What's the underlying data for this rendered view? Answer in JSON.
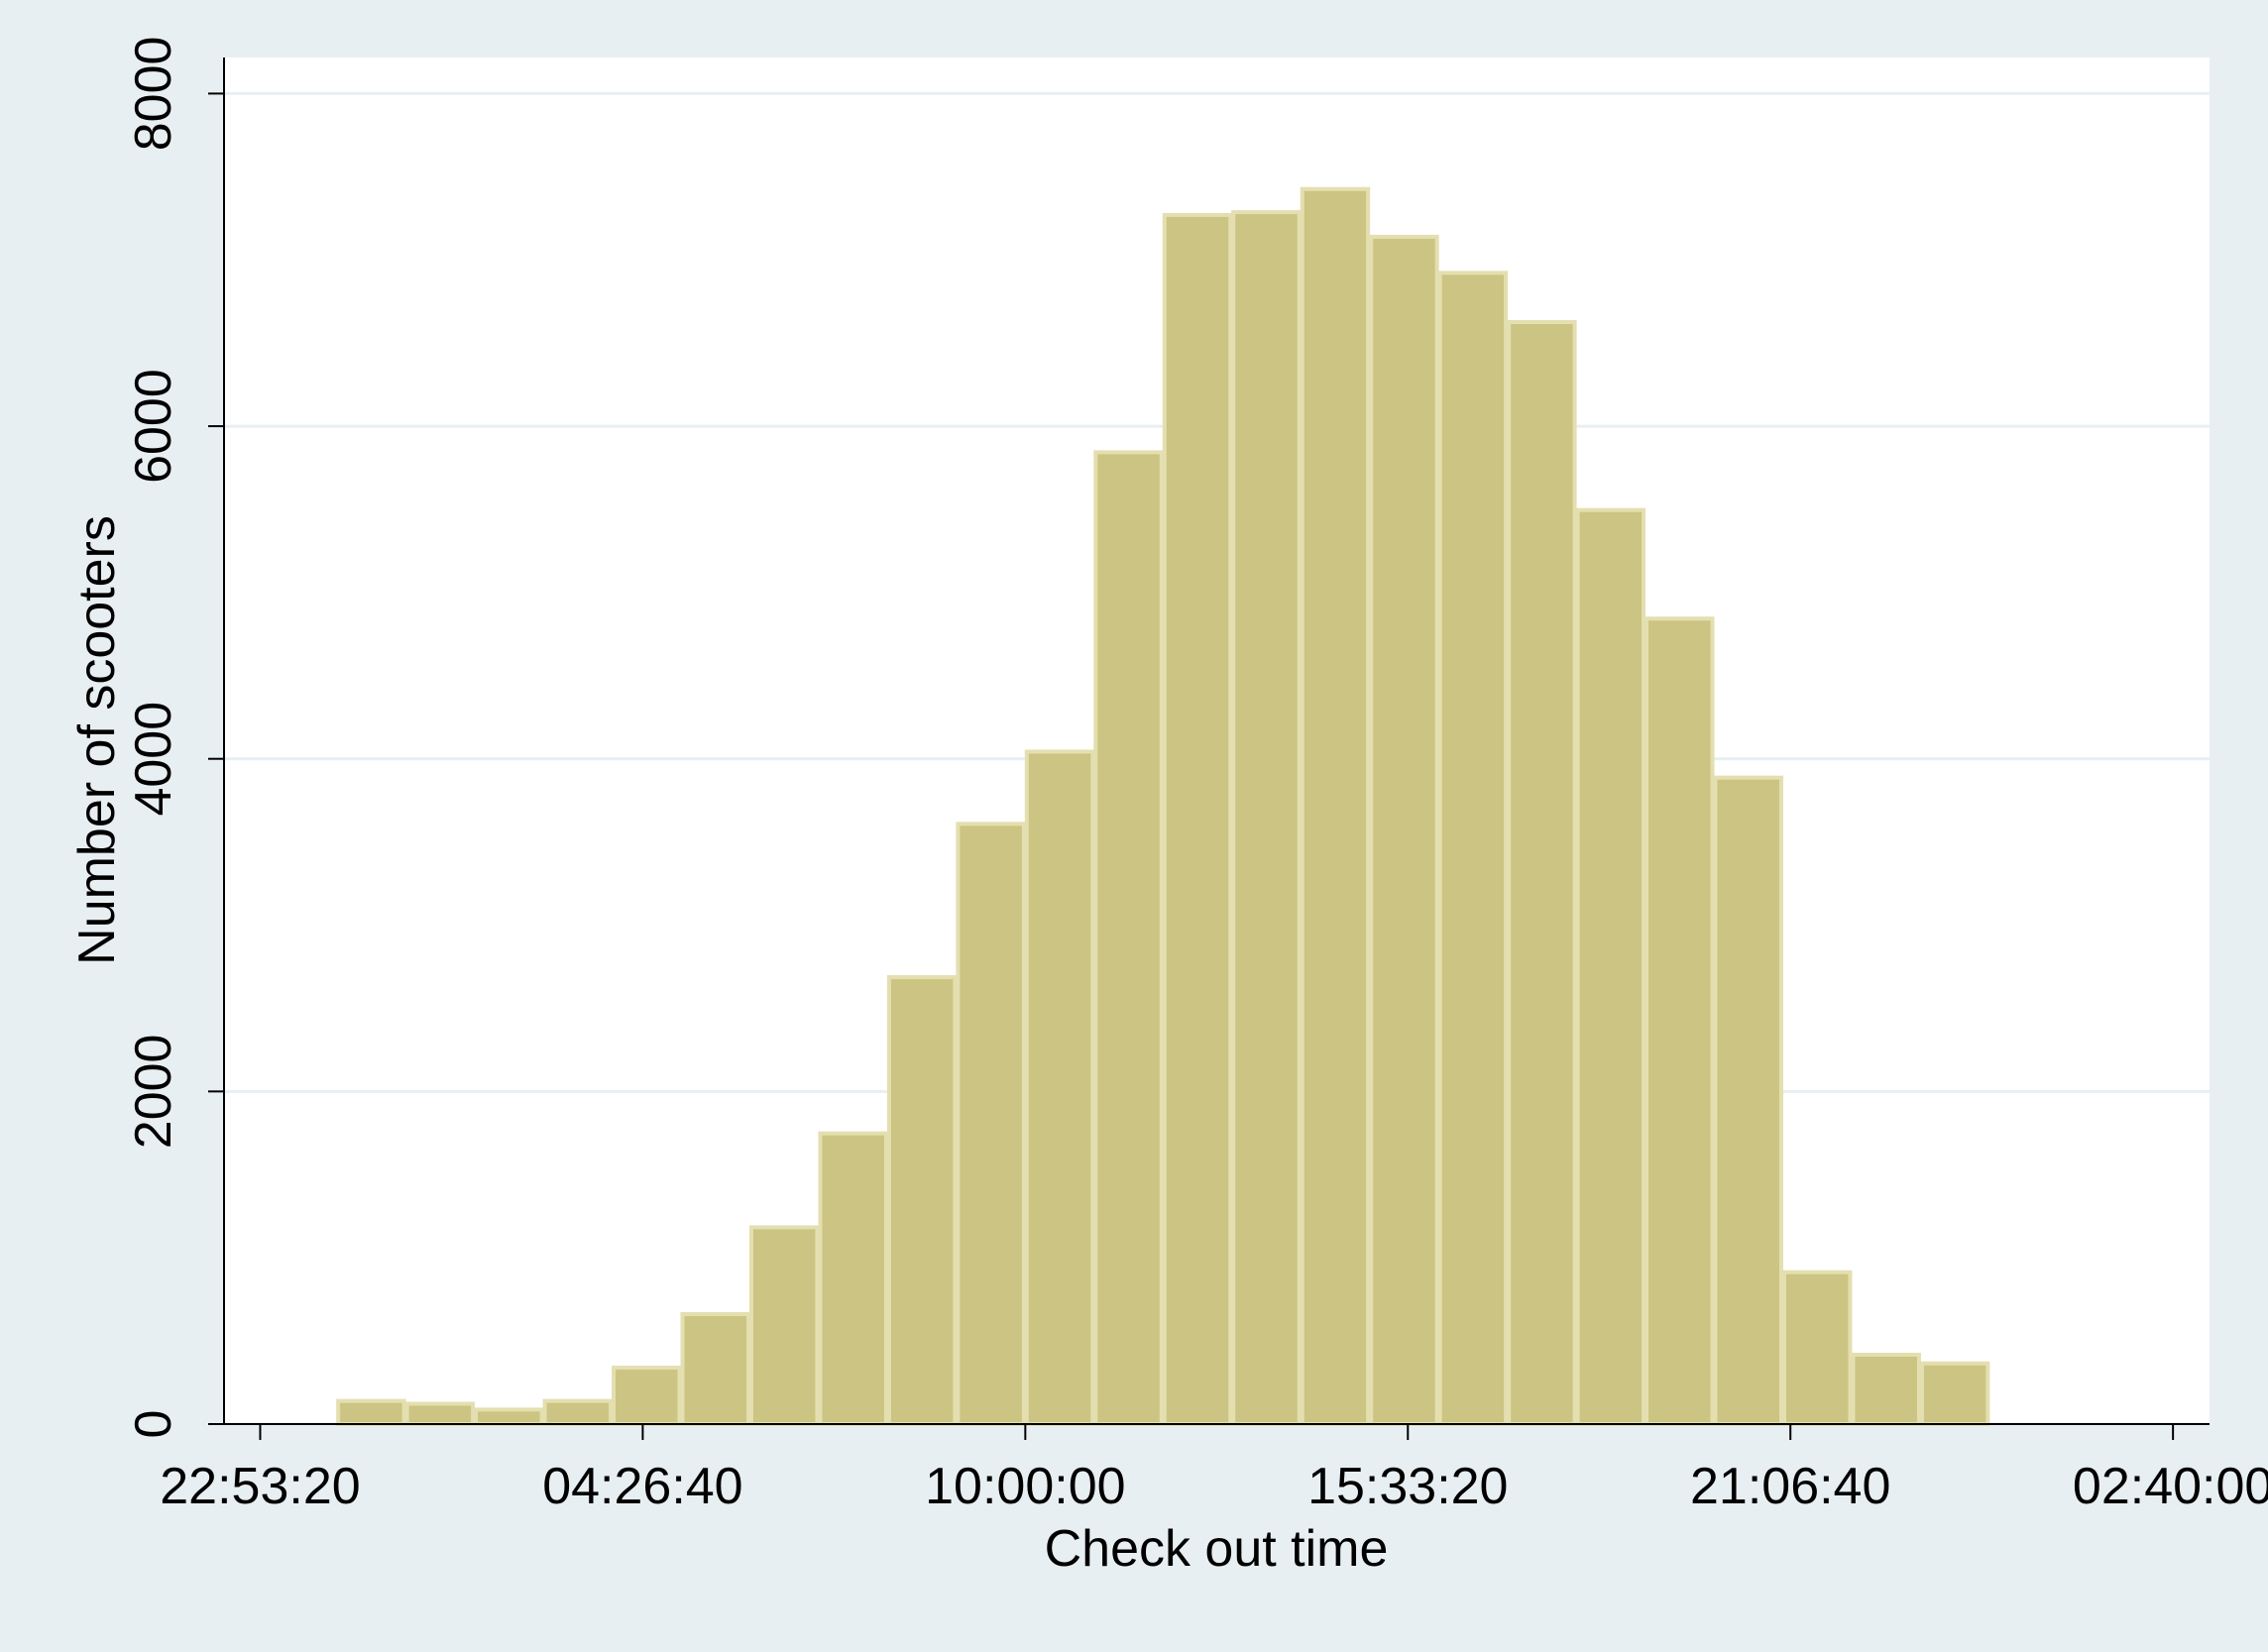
{
  "chart_data": {
    "type": "histogram",
    "x_label": "Check out time",
    "y_label": "Number of scooters",
    "bins": [
      0,
      3600,
      7200,
      10800,
      14400,
      18000,
      21600,
      25200,
      28800,
      32400,
      36000,
      39600,
      43200,
      46800,
      50400,
      54000,
      57600,
      61200,
      64800,
      68400,
      72000,
      75600,
      79200,
      82800,
      86400
    ],
    "values": [
      139,
      122,
      87,
      139,
      339,
      661,
      1183,
      1748,
      2687,
      3609,
      4043,
      5843,
      7270,
      7287,
      7426,
      7139,
      6922,
      6626,
      5496,
      4843,
      3887,
      913,
      417,
      365
    ],
    "color": "#ccc482",
    "xlim": [
      -5890,
      97910
    ],
    "ylim": [
      0,
      8217
    ],
    "xticks": [
      {
        "value": -4000,
        "label": "22:53:20"
      },
      {
        "value": 16000,
        "label": "04:26:40"
      },
      {
        "value": 36000,
        "label": "10:00:00"
      },
      {
        "value": 56000,
        "label": "15:33:20"
      },
      {
        "value": 76000,
        "label": "21:06:40"
      },
      {
        "value": 96000,
        "label": "02:40:00"
      }
    ],
    "yticks": [
      0,
      2000,
      4000,
      6000,
      8000
    ],
    "grid": true
  }
}
